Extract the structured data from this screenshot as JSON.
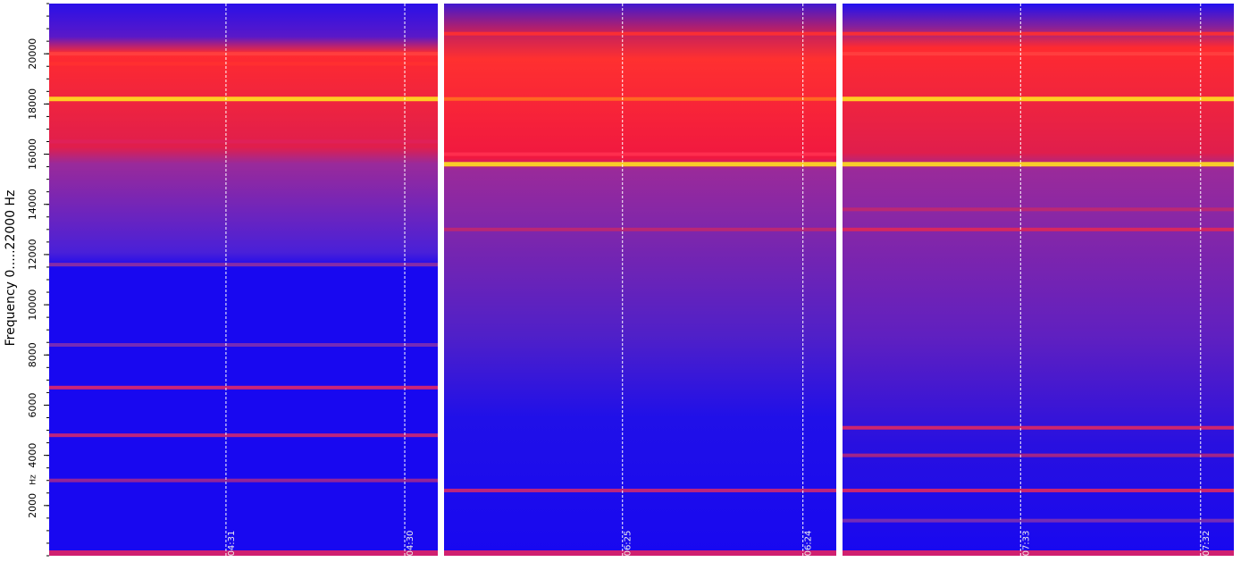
{
  "chart_data": {
    "type": "spectrogram",
    "ylabel": "Frequency  0.....22000 Hz",
    "yunit": "Hz",
    "ylim": [
      0,
      22000
    ],
    "yticks": [
      2000,
      4000,
      6000,
      8000,
      10000,
      12000,
      14000,
      16000,
      18000,
      20000
    ],
    "panels": [
      {
        "markers": [
          "04:31",
          "04:30"
        ],
        "bands": [
          {
            "freq": 18200,
            "color": "#ffe020"
          },
          {
            "freq": 20000,
            "color": "#ff4040"
          },
          {
            "freq": 19600,
            "color": "#ff3030"
          },
          {
            "freq": 16500,
            "color": "#e0205a"
          },
          {
            "freq": 11600,
            "color": "#9030a0"
          },
          {
            "freq": 8400,
            "color": "#8030b0"
          },
          {
            "freq": 6700,
            "color": "#e02868"
          },
          {
            "freq": 4800,
            "color": "#d02870"
          },
          {
            "freq": 3000,
            "color": "#a02890"
          }
        ]
      },
      {
        "markers": [
          "06:25",
          "06:24"
        ],
        "bands": [
          {
            "freq": 18200,
            "color": "#ff7020"
          },
          {
            "freq": 20800,
            "color": "#ff3030"
          },
          {
            "freq": 16000,
            "color": "#ff3050"
          },
          {
            "freq": 15600,
            "color": "#ffe020"
          },
          {
            "freq": 13000,
            "color": "#c02870"
          },
          {
            "freq": 2600,
            "color": "#d02870"
          }
        ]
      },
      {
        "markers": [
          "07:33",
          "07:32"
        ],
        "bands": [
          {
            "freq": 18200,
            "color": "#ffe020"
          },
          {
            "freq": 20800,
            "color": "#ff3030"
          },
          {
            "freq": 20000,
            "color": "#ff4040"
          },
          {
            "freq": 15600,
            "color": "#ffe020"
          },
          {
            "freq": 13800,
            "color": "#c02870"
          },
          {
            "freq": 13000,
            "color": "#e02858"
          },
          {
            "freq": 5100,
            "color": "#e02860"
          },
          {
            "freq": 4000,
            "color": "#b02880"
          },
          {
            "freq": 2600,
            "color": "#e02860"
          },
          {
            "freq": 1400,
            "color": "#8030b0"
          }
        ]
      }
    ]
  }
}
